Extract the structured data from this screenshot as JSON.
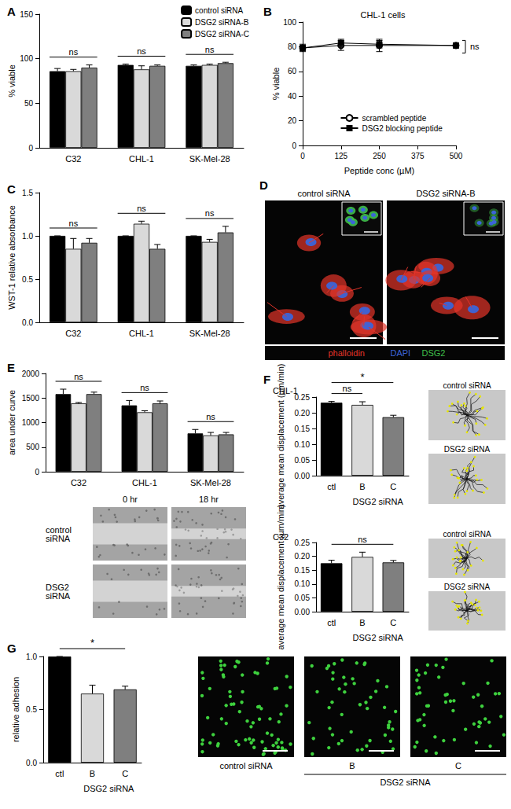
{
  "chart_data": [
    {
      "title": "A",
      "type": "bar",
      "categories": [
        "C32",
        "CHL-1",
        "SK-Mel-28"
      ],
      "ylabel": "% viable",
      "ylim": [
        0,
        150
      ],
      "yticks": [
        0,
        50,
        100,
        150
      ],
      "grid": false,
      "legend": "top-right",
      "series": [
        {
          "name": "control siRNA",
          "color": "#000000",
          "values": [
            86,
            93,
            92
          ],
          "errors": [
            3,
            1,
            1
          ]
        },
        {
          "name": "DSG2 siRNA-B",
          "color": "#d9d9d9",
          "values": [
            86,
            88,
            93
          ],
          "errors": [
            2,
            4,
            1
          ]
        },
        {
          "name": "DSG2 siRNA-C",
          "color": "#7f7f7f",
          "values": [
            90,
            92,
            95
          ],
          "errors": [
            3,
            1,
            1
          ]
        }
      ],
      "annotations": [
        {
          "text": "ns",
          "from": "C32",
          "to": "C32"
        },
        {
          "text": "ns",
          "from": "CHL-1",
          "to": "CHL-1"
        },
        {
          "text": "ns",
          "from": "SK-Mel-28",
          "to": "SK-Mel-28"
        }
      ]
    },
    {
      "title": "B",
      "subtitle": "CHL-1 cells",
      "type": "line",
      "x": [
        0,
        125,
        250,
        500
      ],
      "xlabel": "Peptide conc (µM)",
      "ylabel": "% viable",
      "xlim": [
        0,
        500
      ],
      "xticks": [
        0,
        125,
        250,
        375,
        500
      ],
      "ylim": [
        0,
        100
      ],
      "yticks": [
        0,
        20,
        40,
        60,
        80,
        100
      ],
      "grid": false,
      "legend": "bottom",
      "series": [
        {
          "name": "scrambled peptide",
          "color": "#000000",
          "marker": "open-circle",
          "values": [
            79,
            81,
            81,
            81
          ],
          "errors": [
            3,
            4,
            5,
            2
          ]
        },
        {
          "name": "DSG2 blocking peptide",
          "color": "#000000",
          "marker": "filled-square",
          "values": [
            79,
            83,
            82,
            81
          ],
          "errors": [
            2,
            3,
            3,
            1
          ]
        }
      ],
      "annotations": [
        {
          "text": "ns",
          "y": 80
        }
      ]
    },
    {
      "title": "C",
      "type": "bar",
      "categories": [
        "C32",
        "CHL-1",
        "SK-Mel-28"
      ],
      "ylabel": "WST-1 relative absorbance",
      "ylim": [
        0,
        1.5
      ],
      "yticks": [
        {
          "value": 0,
          "label": "0.0"
        },
        0.5,
        {
          "value": 1,
          "label": "1.0"
        },
        1.5
      ],
      "grid": false,
      "series": [
        {
          "color": "#000000",
          "values": [
            1,
            1,
            1
          ],
          "errors": [
            0,
            0,
            0
          ]
        },
        {
          "color": "#d9d9d9",
          "values": [
            0.85,
            1.14,
            0.93
          ],
          "errors": [
            0.12,
            0.03,
            0.03
          ]
        },
        {
          "color": "#7f7f7f",
          "values": [
            0.92,
            0.85,
            1.04
          ],
          "errors": [
            0.05,
            0.05,
            0.07
          ]
        }
      ],
      "annotations": [
        {
          "text": "ns",
          "from": "C32",
          "to": "C32"
        },
        {
          "text": "ns",
          "from": "CHL-1",
          "to": "CHL-1"
        },
        {
          "text": "ns",
          "from": "SK-Mel-28",
          "to": "SK-Mel-28"
        }
      ]
    },
    {
      "title": "E",
      "type": "bar",
      "categories": [
        "C32",
        "CHL-1",
        "SK-Mel-28"
      ],
      "ylabel": "area under curve",
      "ylim": [
        0,
        2000
      ],
      "yticks": [
        0,
        500,
        1000,
        1500,
        2000
      ],
      "grid": false,
      "series": [
        {
          "color": "#000000",
          "values": [
            1580,
            1350,
            780
          ],
          "errors": [
            100,
            100,
            80
          ]
        },
        {
          "color": "#d9d9d9",
          "values": [
            1390,
            1210,
            740
          ],
          "errors": [
            20,
            30,
            60
          ]
        },
        {
          "color": "#7f7f7f",
          "values": [
            1580,
            1390,
            760
          ],
          "errors": [
            40,
            50,
            40
          ]
        }
      ],
      "annotations": [
        {
          "text": "ns",
          "from": "C32",
          "to": "C32"
        },
        {
          "text": "ns",
          "from": "CHL-1",
          "to": "CHL-1"
        },
        {
          "text": "ns",
          "from": "SK-Mel-28",
          "to": "SK-Mel-28"
        }
      ]
    },
    {
      "title": "F",
      "subtitle": "CHL-1",
      "type": "bar",
      "categories": [
        "ctl",
        "B",
        "C"
      ],
      "xlabel": "DSG2 siRNA",
      "ylabel": "average mean displacement (µm/min)",
      "ylim": [
        0,
        0.25
      ],
      "yticks": [
        {
          "value": 0,
          "label": "0.00"
        },
        0.05,
        {
          "value": 0.1,
          "label": "0.10"
        },
        0.15,
        {
          "value": 0.2,
          "label": "0.20"
        },
        0.25
      ],
      "grid": false,
      "values": [
        0.232,
        0.225,
        0.186
      ],
      "errors": [
        0.004,
        0.01,
        0.006
      ],
      "colors": [
        "#000000",
        "#d9d9d9",
        "#7f7f7f"
      ],
      "annotations": [
        {
          "text": "ns",
          "from": "ctl",
          "to": "B"
        },
        {
          "text": "*",
          "from": "ctl",
          "to": "C"
        }
      ]
    },
    {
      "subtitle": "C32",
      "type": "bar",
      "categories": [
        "ctl",
        "B",
        "C"
      ],
      "xlabel": "DSG2 siRNA",
      "ylabel": "average mean displacement (µm/min)",
      "ylim": [
        0,
        0.25
      ],
      "yticks": [
        {
          "value": 0,
          "label": "0.00"
        },
        0.05,
        {
          "value": 0.1,
          "label": "0.10"
        },
        0.15,
        {
          "value": 0.2,
          "label": "0.20"
        },
        0.25
      ],
      "grid": false,
      "values": [
        0.175,
        0.198,
        0.178
      ],
      "errors": [
        0.011,
        0.017,
        0.007
      ],
      "colors": [
        "#000000",
        "#d9d9d9",
        "#7f7f7f"
      ],
      "annotations": [
        {
          "text": "ns",
          "from": "ctl",
          "to": "C"
        }
      ]
    },
    {
      "title": "G",
      "type": "bar",
      "categories": [
        "ctl",
        "B",
        "C"
      ],
      "xlabel": "DSG2 siRNA",
      "ylabel": "relative adhesion",
      "ylim": [
        0,
        1
      ],
      "yticks": [
        {
          "value": 0,
          "label": "0.0"
        },
        0.5,
        {
          "value": 1,
          "label": "1.0"
        }
      ],
      "grid": false,
      "values": [
        1,
        0.65,
        0.69
      ],
      "errors": [
        0,
        0.08,
        0.03
      ],
      "colors": [
        "#000000",
        "#d9d9d9",
        "#7f7f7f"
      ],
      "annotations": [
        {
          "text": "*",
          "from": "ctl",
          "to": "C"
        }
      ]
    }
  ],
  "images": [
    {
      "title": "D",
      "panels": [
        "control siRNA",
        "DSG2 siRNA-B"
      ],
      "channels": [
        {
          "name": "phalloidin",
          "color": "#e3342a"
        },
        {
          "name": "DAPI",
          "color": "#3c64d8"
        },
        {
          "name": "DSG2",
          "color": "#3fbf4a"
        }
      ]
    },
    {
      "rows": [
        "control siRNA",
        "DSG2 siRNA"
      ],
      "columns": [
        "0 hr",
        "18 hr"
      ]
    },
    {
      "panels": [
        "control siRNA",
        "DSG2 siRNA"
      ]
    },
    {
      "panels": [
        "control siRNA",
        "DSG2 siRNA"
      ]
    },
    {
      "panels": [
        "control siRNA",
        "B",
        "C"
      ],
      "group_label": "DSG2 siRNA"
    }
  ]
}
